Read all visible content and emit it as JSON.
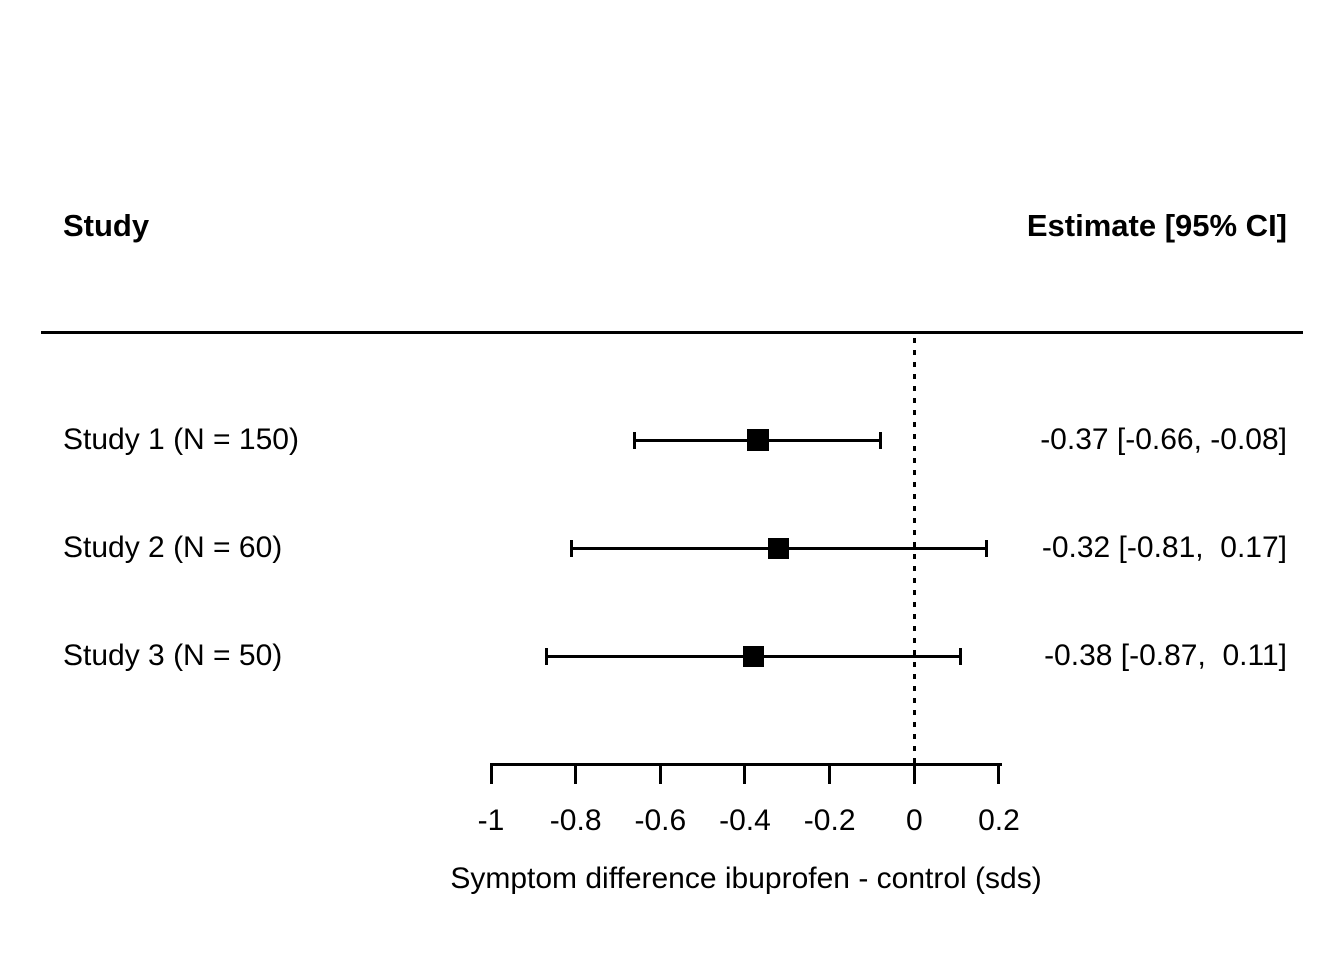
{
  "header": {
    "study_col": "Study",
    "estimate_col": "Estimate [95% CI]"
  },
  "chart_data": {
    "type": "forest",
    "title": "",
    "xlabel": "Symptom difference ibuprofen - control (sds)",
    "xlim": [
      -1,
      0.2
    ],
    "x_ticks": [
      -1,
      -0.8,
      -0.6,
      -0.4,
      -0.2,
      0,
      0.2
    ],
    "x_tick_labels": [
      "-1",
      "-0.8",
      "-0.6",
      "-0.4",
      "-0.2",
      "0",
      "0.2"
    ],
    "reference_line": 0,
    "grid": false,
    "studies": [
      {
        "label": "Study 1 (N = 150)",
        "n": 150,
        "estimate": -0.37,
        "ci_lower": -0.66,
        "ci_upper": -0.08,
        "estimate_text": "-0.37 [-0.66, -0.08]",
        "marker_size_px": 22
      },
      {
        "label": "Study 2 (N = 60)",
        "n": 60,
        "estimate": -0.32,
        "ci_lower": -0.81,
        "ci_upper": 0.17,
        "estimate_text": "-0.32 [-0.81,  0.17]",
        "marker_size_px": 21
      },
      {
        "label": "Study 3 (N = 50)",
        "n": 50,
        "estimate": -0.38,
        "ci_lower": -0.87,
        "ci_upper": 0.11,
        "estimate_text": "-0.38 [-0.87,  0.11]",
        "marker_size_px": 21
      }
    ],
    "colors": {
      "foreground": "#000000",
      "background": "#ffffff"
    }
  }
}
